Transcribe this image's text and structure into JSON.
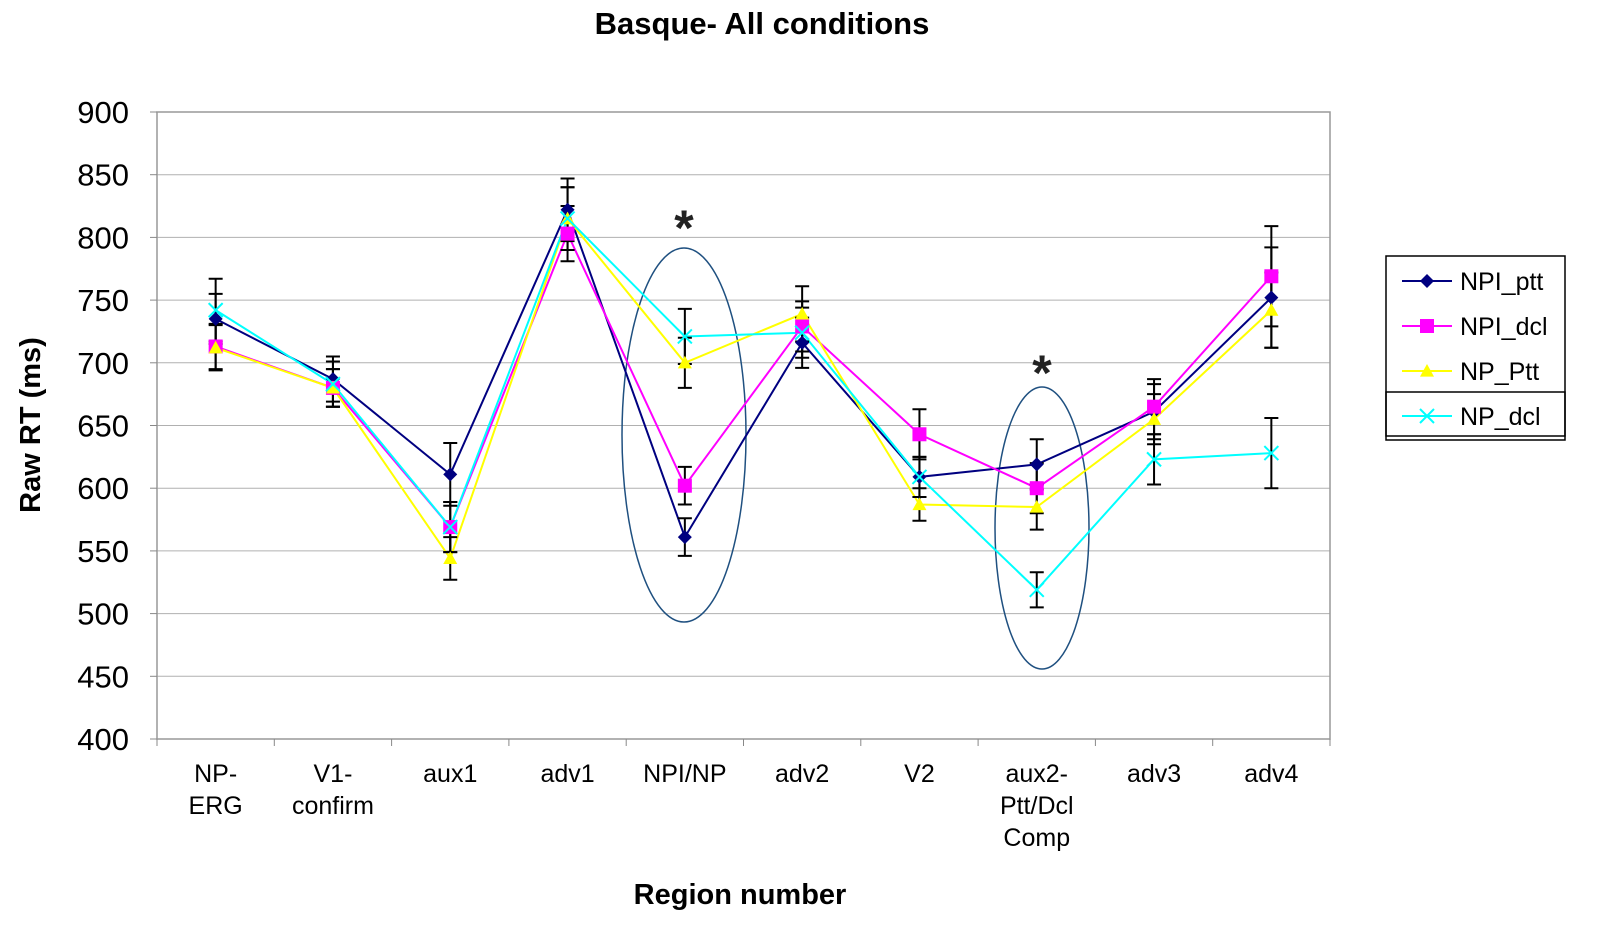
{
  "chart_data": {
    "type": "line",
    "title": "Basque- All conditions",
    "x_label": "Region number",
    "y_label": "Raw RT (ms)",
    "categories": [
      "NP-\nERG",
      "V1-\nconfirm",
      "aux1",
      "adv1",
      "NPI/NP",
      "adv2",
      "V2",
      "aux2-\nPtt/Dcl\nComp",
      "adv3",
      "adv4"
    ],
    "series": [
      {
        "name": "NPI_ptt",
        "color": "#000080",
        "marker": "diamond",
        "values": [
          735,
          687,
          611,
          822,
          561,
          716,
          609,
          619,
          661,
          752
        ],
        "errors": [
          20,
          18,
          25,
          25,
          15,
          20,
          16,
          20,
          22,
          40
        ]
      },
      {
        "name": "NPI_dcl",
        "color": "#ff00ff",
        "marker": "square",
        "values": [
          713,
          680,
          569,
          803,
          602,
          729,
          643,
          600,
          665,
          769
        ],
        "errors": [
          18,
          15,
          20,
          22,
          15,
          20,
          20,
          20,
          22,
          40
        ]
      },
      {
        "name": "NP_Ptt",
        "color": "#ffff00",
        "marker": "triangle",
        "values": [
          712,
          680,
          544,
          815,
          700,
          739,
          587,
          585,
          655,
          742
        ],
        "errors": [
          18,
          15,
          17,
          25,
          20,
          22,
          13,
          18,
          20,
          30
        ]
      },
      {
        "name": "NP_dcl",
        "color": "#00ffff",
        "marker": "x",
        "values": [
          742,
          683,
          569,
          815,
          721,
          724,
          609,
          519,
          623,
          628
        ],
        "errors": [
          25,
          18,
          20,
          25,
          22,
          20,
          16,
          14,
          20,
          28
        ]
      }
    ],
    "annotations": [
      "*",
      "*"
    ],
    "ylim": [
      400,
      900
    ],
    "yticks": [
      400,
      450,
      500,
      550,
      600,
      650,
      700,
      750,
      800,
      850,
      900
    ],
    "grid": true,
    "legend": "right"
  }
}
